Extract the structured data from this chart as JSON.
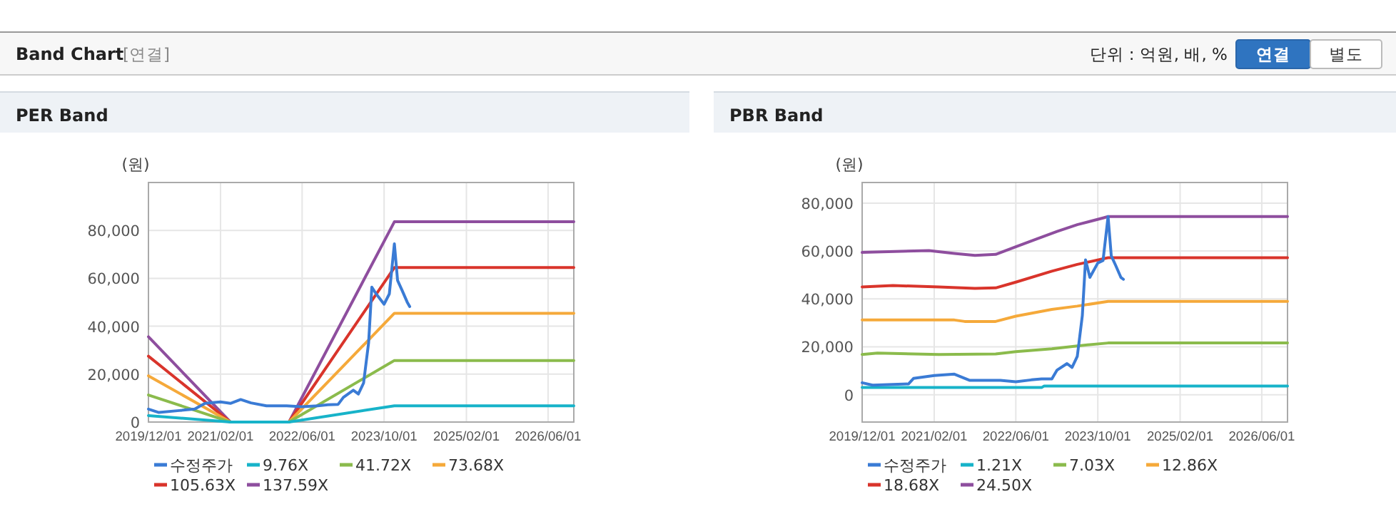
{
  "chart_data": [
    {
      "type": "other",
      "title": "Band Chart",
      "annotations": [
        "[연결]",
        "단위 : 억원, 배, %",
        "연결",
        "별도"
      ]
    },
    {
      "type": "line",
      "title": "PER Band",
      "ylabel": "(원)",
      "xlim": [
        "2019-12-01",
        "2026-11-01"
      ],
      "ylim": [
        0,
        100000
      ],
      "xticks": [
        {
          "value": "2019-12-01",
          "label": "2019/12/01"
        },
        {
          "value": "2021-02-01",
          "label": "2021/02/01"
        },
        {
          "value": "2022-06-01",
          "label": "2022/06/01"
        },
        {
          "value": "2023-10-01",
          "label": "2023/10/01"
        },
        {
          "value": "2025-02-01",
          "label": "2025/02/01"
        },
        {
          "value": "2026-06-01",
          "label": "2026/06/01"
        }
      ],
      "yticks": [
        0,
        {
          "value": 20000,
          "label": "20,000"
        },
        {
          "value": 40000,
          "label": "40,000"
        },
        {
          "value": 60000,
          "label": "60,000"
        },
        {
          "value": 80000,
          "label": "80,000"
        }
      ],
      "grid": true,
      "legend": "bottom",
      "series": [
        {
          "name": "수정주가",
          "color": "#3a7bd5",
          "x": [
            "2019-12-01",
            "2020-02-01",
            "2020-06-01",
            "2020-09-01",
            "2020-11-01",
            "2021-02-01",
            "2021-04-01",
            "2021-06-01",
            "2021-08-01",
            "2021-11-01",
            "2022-03-01",
            "2022-06-01",
            "2022-09-01",
            "2022-11-01",
            "2023-01-01",
            "2023-02-01",
            "2023-04-01",
            "2023-05-01",
            "2023-06-01",
            "2023-07-01",
            "2023-07-20",
            "2023-08-15",
            "2023-10-01",
            "2023-11-01",
            "2023-12-01",
            "2023-12-20",
            "2024-01-15",
            "2024-02-15",
            "2024-03-01"
          ],
          "values": [
            5400,
            4000,
            4800,
            5400,
            7800,
            8400,
            7800,
            9400,
            8000,
            6800,
            6800,
            6400,
            6800,
            7200,
            7400,
            10300,
            13300,
            11700,
            16300,
            33200,
            56300,
            53500,
            49200,
            53500,
            74400,
            59100,
            55100,
            50100,
            48200
          ]
        },
        {
          "name": "9.76X",
          "color": "#17b3c9",
          "x": [
            "2019-12-01",
            "2021-04-01",
            "2022-03-15",
            "2023-12-01",
            "2026-11-01"
          ],
          "values": [
            2700,
            0,
            0,
            6800,
            6800
          ]
        },
        {
          "name": "41.72X",
          "color": "#8bbb4c",
          "x": [
            "2019-12-01",
            "2021-04-01",
            "2022-03-15",
            "2023-12-01",
            "2026-11-01"
          ],
          "values": [
            11300,
            0,
            0,
            25700,
            25700
          ]
        },
        {
          "name": "73.68X",
          "color": "#f5a93a",
          "x": [
            "2019-12-01",
            "2021-04-01",
            "2022-03-15",
            "2023-12-01",
            "2026-11-01"
          ],
          "values": [
            19300,
            0,
            0,
            45400,
            45400
          ]
        },
        {
          "name": "105.63X",
          "color": "#d9342b",
          "x": [
            "2019-12-01",
            "2021-04-01",
            "2022-03-15",
            "2023-12-01",
            "2026-11-01"
          ],
          "values": [
            27500,
            0,
            0,
            64500,
            64500
          ]
        },
        {
          "name": "137.59X",
          "color": "#8e4e9e",
          "x": [
            "2019-12-01",
            "2021-04-01",
            "2022-03-15",
            "2023-12-01",
            "2026-11-01"
          ],
          "values": [
            35600,
            0,
            0,
            83600,
            83600
          ]
        }
      ]
    },
    {
      "type": "line",
      "title": "PBR Band",
      "ylabel": "(원)",
      "xlim": [
        "2019-12-01",
        "2026-11-01"
      ],
      "ylim": [
        -11400,
        88600
      ],
      "xticks": [
        {
          "value": "2019-12-01",
          "label": "2019/12/01"
        },
        {
          "value": "2021-02-01",
          "label": "2021/02/01"
        },
        {
          "value": "2022-06-01",
          "label": "2022/06/01"
        },
        {
          "value": "2023-10-01",
          "label": "2023/10/01"
        },
        {
          "value": "2025-02-01",
          "label": "2025/02/01"
        },
        {
          "value": "2026-06-01",
          "label": "2026/06/01"
        }
      ],
      "yticks": [
        0,
        {
          "value": 20000,
          "label": "20,000"
        },
        {
          "value": 40000,
          "label": "40,000"
        },
        {
          "value": 60000,
          "label": "60,000"
        },
        {
          "value": 80000,
          "label": "80,000"
        }
      ],
      "grid": true,
      "legend": "bottom",
      "series": [
        {
          "name": "수정주가",
          "color": "#3a7bd5",
          "x": [
            "2019-12-01",
            "2020-02-01",
            "2020-09-01",
            "2020-10-01",
            "2021-02-01",
            "2021-06-01",
            "2021-09-01",
            "2022-03-01",
            "2022-06-01",
            "2022-09-01",
            "2022-11-01",
            "2023-01-01",
            "2023-02-01",
            "2023-04-01",
            "2023-05-01",
            "2023-06-01",
            "2023-07-01",
            "2023-07-20",
            "2023-08-15",
            "2023-10-01",
            "2023-11-01",
            "2023-12-01",
            "2023-12-20",
            "2024-01-15",
            "2024-02-15",
            "2024-03-01"
          ],
          "values": [
            5000,
            4000,
            4500,
            6800,
            8000,
            8600,
            6000,
            6000,
            5400,
            6200,
            6600,
            6600,
            10300,
            13000,
            11400,
            16000,
            33000,
            56300,
            49000,
            55000,
            56000,
            74400,
            58000,
            54000,
            49000,
            48200
          ]
        },
        {
          "name": "1.21X",
          "color": "#17b3c9",
          "x": [
            "2019-12-01",
            "2022-11-01",
            "2022-11-15",
            "2026-11-01"
          ],
          "values": [
            3000,
            3000,
            3600,
            3600
          ]
        },
        {
          "name": "7.03X",
          "color": "#8bbb4c",
          "x": [
            "2019-12-01",
            "2020-03-01",
            "2021-03-01",
            "2022-02-01",
            "2022-06-01",
            "2023-01-01",
            "2023-06-01",
            "2023-12-01",
            "2026-11-01"
          ],
          "values": [
            16800,
            17400,
            16800,
            17000,
            18000,
            19200,
            20400,
            21600,
            21600
          ]
        },
        {
          "name": "12.86X",
          "color": "#f5a93a",
          "x": [
            "2019-12-01",
            "2021-06-01",
            "2021-08-01",
            "2022-02-01",
            "2022-06-01",
            "2023-01-01",
            "2023-06-01",
            "2023-12-01",
            "2026-11-01"
          ],
          "values": [
            31200,
            31200,
            30600,
            30600,
            32800,
            35600,
            37000,
            39000,
            39000
          ]
        },
        {
          "name": "18.68X",
          "color": "#d9342b",
          "x": [
            "2019-12-01",
            "2020-06-01",
            "2021-03-01",
            "2021-10-01",
            "2022-02-01",
            "2022-06-01",
            "2023-01-01",
            "2023-06-01",
            "2023-12-01",
            "2026-11-01"
          ],
          "values": [
            45000,
            45600,
            45000,
            44400,
            44600,
            47000,
            51600,
            54400,
            57200,
            57200
          ]
        },
        {
          "name": "24.50X",
          "color": "#8e4e9e",
          "x": [
            "2019-12-01",
            "2021-01-01",
            "2021-06-01",
            "2021-10-01",
            "2022-02-01",
            "2022-06-01",
            "2022-10-01",
            "2023-02-01",
            "2023-06-01",
            "2023-11-01",
            "2023-12-01",
            "2026-11-01"
          ],
          "values": [
            59400,
            60200,
            59000,
            58200,
            58600,
            61800,
            65000,
            68200,
            71000,
            73800,
            74400,
            74400
          ]
        }
      ]
    }
  ]
}
